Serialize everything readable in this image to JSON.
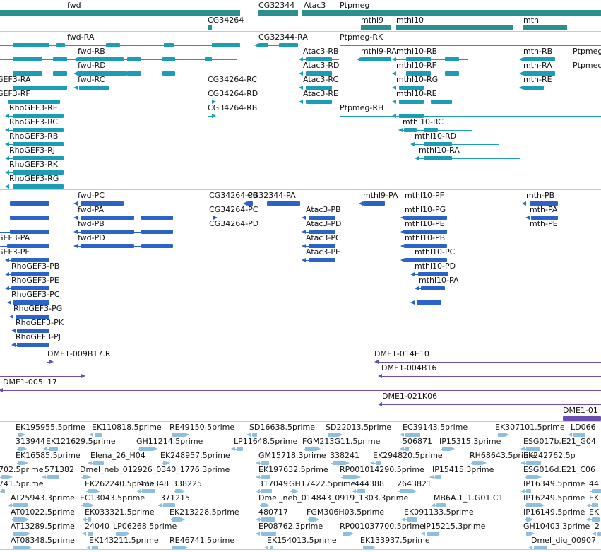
{
  "colors": {
    "gene_bar": "#2a8f8f",
    "transcript": "#1a9db5",
    "protein": "#2c63c9",
    "clone": "#6a4fb0",
    "est": "#8fbfdf"
  },
  "genes": [
    {
      "name": "fwd"
    },
    {
      "name": "CG34264"
    },
    {
      "name": "CG32344"
    },
    {
      "name": "Atac3"
    },
    {
      "name": "Ptpmeg"
    },
    {
      "name": "mthl9"
    },
    {
      "name": "mthl10"
    },
    {
      "name": "mth"
    }
  ],
  "transcripts": [
    {
      "name": "fwd-RA"
    },
    {
      "name": "fwd-RB"
    },
    {
      "name": "fwd-RD"
    },
    {
      "name": "fwd-RC"
    },
    {
      "name": "GEF3-RA"
    },
    {
      "name": "GEF3-RF"
    },
    {
      "name": "CG32344-RA"
    },
    {
      "name": "Ptpmeg-RK"
    },
    {
      "name": "Atac3-RB"
    },
    {
      "name": "mthl9-RA"
    },
    {
      "name": "mthl10-RB"
    },
    {
      "name": "mth-RB"
    },
    {
      "name": "Ptpmeg-RI"
    },
    {
      "name": "Atac3-RD"
    },
    {
      "name": "mthl10-RF"
    },
    {
      "name": "mth-RA"
    },
    {
      "name": "Ptpmeg-RJ"
    },
    {
      "name": "CG34264-RC"
    },
    {
      "name": "Atac3-RC"
    },
    {
      "name": "mthl10-RG"
    },
    {
      "name": "mth-RE"
    },
    {
      "name": "CG34264-RD"
    },
    {
      "name": "Atac3-RE"
    },
    {
      "name": "mthl10-RE"
    },
    {
      "name": "RhoGEF3-RE"
    },
    {
      "name": "CG34264-RB"
    },
    {
      "name": "Ptpmeg-RH"
    },
    {
      "name": "RhoGEF3-RC"
    },
    {
      "name": "mthl10-RC"
    },
    {
      "name": "RhoGEF3-RB"
    },
    {
      "name": "mthl10-RD"
    },
    {
      "name": "RhoGEF3-RJ"
    },
    {
      "name": "mthl10-RA"
    },
    {
      "name": "RhoGEF3-RK"
    },
    {
      "name": "RhoGEF3-RG"
    }
  ],
  "proteins": [
    {
      "name": "fwd-PC"
    },
    {
      "name": "CG34264-PB"
    },
    {
      "name": "CG32344-PA"
    },
    {
      "name": "mthl9-PA"
    },
    {
      "name": "mthl10-PF"
    },
    {
      "name": "mth-PB"
    },
    {
      "name": "fwd-PA"
    },
    {
      "name": "CG34264-PC"
    },
    {
      "name": "Atac3-PB"
    },
    {
      "name": "mthl10-PG"
    },
    {
      "name": "mth-PA"
    },
    {
      "name": "fwd-PB"
    },
    {
      "name": "CG34264-PD"
    },
    {
      "name": "Atac3-PD"
    },
    {
      "name": "mthl10-PE"
    },
    {
      "name": "mth-PE"
    },
    {
      "name": "GEF3-PA"
    },
    {
      "name": "fwd-PD"
    },
    {
      "name": "Atac3-PC"
    },
    {
      "name": "mthl10-PB"
    },
    {
      "name": "GEF3-PF"
    },
    {
      "name": "Atac3-PE"
    },
    {
      "name": "mthl10-PC"
    },
    {
      "name": "RhoGEF3-PB"
    },
    {
      "name": "mthl10-PD"
    },
    {
      "name": "RhoGEF3-PE"
    },
    {
      "name": "mthl10-PA"
    },
    {
      "name": "RhoGEF3-PC"
    },
    {
      "name": "RhoGEF3-PG"
    },
    {
      "name": "RhoGEF3-PK"
    },
    {
      "name": "RhoGEF3-PJ"
    }
  ],
  "clones": [
    {
      "name": "DME1-009B17.R"
    },
    {
      "name": "DME1-014E10"
    },
    {
      "name": "DME1-004B16"
    },
    {
      "name": "DME1-005L17"
    },
    {
      "name": "DME1-021K06"
    },
    {
      "name": "DME1-01"
    }
  ],
  "ests": [
    {
      "name": "EK195955.5prime"
    },
    {
      "name": "EK110818.5prime"
    },
    {
      "name": "RE49150.5prime"
    },
    {
      "name": "SD16638.5prime"
    },
    {
      "name": "SD22013.5prime"
    },
    {
      "name": "EC39143.5prime"
    },
    {
      "name": "EK307101.5prime"
    },
    {
      "name": "LD066"
    },
    {
      "name": "313944"
    },
    {
      "name": "EK121629.5prime"
    },
    {
      "name": "GH11214.5prime"
    },
    {
      "name": "LP11648.5prime"
    },
    {
      "name": "FGM213G11.5prime"
    },
    {
      "name": "506871"
    },
    {
      "name": "IP15315.3prime"
    },
    {
      "name": "ESG017b.E21_G04"
    },
    {
      "name": "EK16585.5prime"
    },
    {
      "name": "Elena_26_H04"
    },
    {
      "name": "EK248957.5prime"
    },
    {
      "name": "GM15718.3prime"
    },
    {
      "name": "338241"
    },
    {
      "name": "EK294820.5prime"
    },
    {
      "name": "RH68643.5prime"
    },
    {
      "name": "EK242762.5p"
    },
    {
      "name": "702.5prime"
    },
    {
      "name": "571382"
    },
    {
      "name": "Dmel_neb_012926_0340_1776.3prime"
    },
    {
      "name": "EK197632.5prime"
    },
    {
      "name": "RP001014290.5prime"
    },
    {
      "name": "IP15415.3prime"
    },
    {
      "name": "ESG016d.E21_C06"
    },
    {
      "name": "741.5prime"
    },
    {
      "name": "EK262240.5prime"
    },
    {
      "name": "435348"
    },
    {
      "name": "338225"
    },
    {
      "name": "317049"
    },
    {
      "name": "GH17422.5prime"
    },
    {
      "name": "444388"
    },
    {
      "name": "2643821"
    },
    {
      "name": "IP16349.5prime"
    },
    {
      "name": "44"
    },
    {
      "name": "AT25943.3prime"
    },
    {
      "name": "EC13043.5prime"
    },
    {
      "name": "371215"
    },
    {
      "name": "Dmel_neb_014843_0919_1303.3prime"
    },
    {
      "name": "MB6A.1_1.G01.C1"
    },
    {
      "name": "IP16249.5prime"
    },
    {
      "name": "EK"
    },
    {
      "name": "AT01022.5prime"
    },
    {
      "name": "EK033321.5prime"
    },
    {
      "name": "EK213228.5prime"
    },
    {
      "name": "480717"
    },
    {
      "name": "FGM306H03.5prime"
    },
    {
      "name": "EK091133.5prime"
    },
    {
      "name": "IP16149.5prime"
    },
    {
      "name": "EK"
    },
    {
      "name": "AT13289.5prime"
    },
    {
      "name": "24040"
    },
    {
      "name": "LP06268.5prime"
    },
    {
      "name": "EP08762.3prime"
    },
    {
      "name": "RP001037700.5prime"
    },
    {
      "name": "IP15215.3prime"
    },
    {
      "name": "GH10403.3prime"
    },
    {
      "name": "2"
    },
    {
      "name": "AT08348.5prime"
    },
    {
      "name": "EK143211.5prime"
    },
    {
      "name": "RE46741.5prime"
    },
    {
      "name": "EK154013.5prime"
    },
    {
      "name": "EK133937.5prime"
    },
    {
      "name": "Dmel_dig_00907"
    }
  ]
}
